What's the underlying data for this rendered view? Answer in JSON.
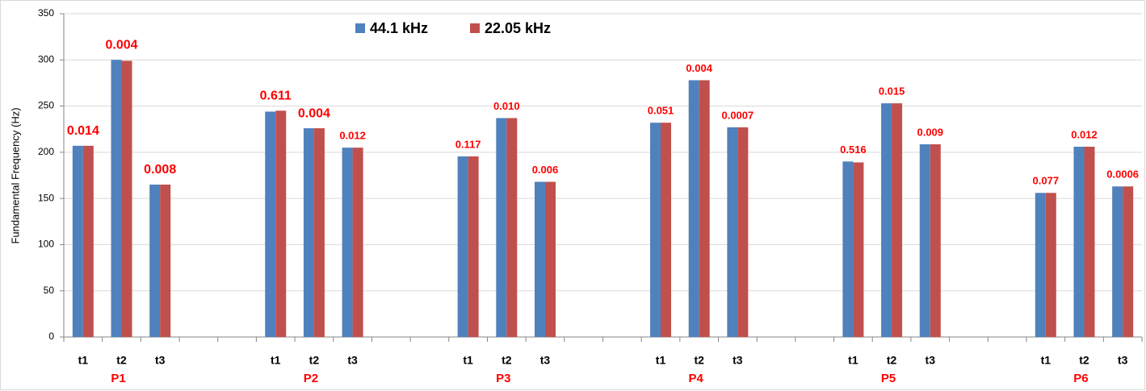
{
  "chart_data": {
    "type": "bar",
    "y_label": "Fundamental Frequency (Hz)",
    "categories": [
      "t1",
      "t2",
      "t3",
      null,
      null,
      "t1",
      "t2",
      "t3",
      null,
      null,
      "t1",
      "t2",
      "t3",
      null,
      null,
      "t1",
      "t2",
      "t3",
      null,
      null,
      "t1",
      "t2",
      "t3",
      null,
      null,
      "t1",
      "t2",
      "t3"
    ],
    "group_labels": [
      "P1",
      "P2",
      "P3",
      "P4",
      "P5",
      "P6"
    ],
    "series": [
      {
        "name": "44.1 kHz",
        "color": "#4f81bd",
        "values": [
          207,
          300,
          165,
          null,
          null,
          244,
          226,
          205,
          null,
          null,
          195.5,
          237,
          168,
          null,
          null,
          232,
          278,
          227,
          null,
          null,
          190,
          253,
          208.6,
          null,
          null,
          156,
          206,
          163
        ]
      },
      {
        "name": "22.05 kHz",
        "color": "#c0504d",
        "values": [
          207,
          299,
          165,
          null,
          null,
          245,
          226,
          205,
          null,
          null,
          195.5,
          237,
          168,
          null,
          null,
          232,
          278,
          227,
          null,
          null,
          189,
          253,
          208.6,
          null,
          null,
          156,
          206,
          163
        ]
      }
    ],
    "annotations": [
      "0.014",
      "0.004",
      "0.008",
      null,
      null,
      "0.611",
      "0.004",
      "0.012",
      null,
      null,
      "0.117",
      "0.010",
      "0.006",
      null,
      null,
      "0.051",
      "0.004",
      "0.0007",
      null,
      null,
      "0.516",
      "0.015",
      "0.009",
      null,
      null,
      "0.077",
      "0.012",
      "0.0006"
    ],
    "ylim": [
      0,
      350
    ],
    "yticks": [
      0,
      50,
      100,
      150,
      200,
      250,
      300,
      350
    ],
    "grid": true,
    "legend": "top"
  }
}
